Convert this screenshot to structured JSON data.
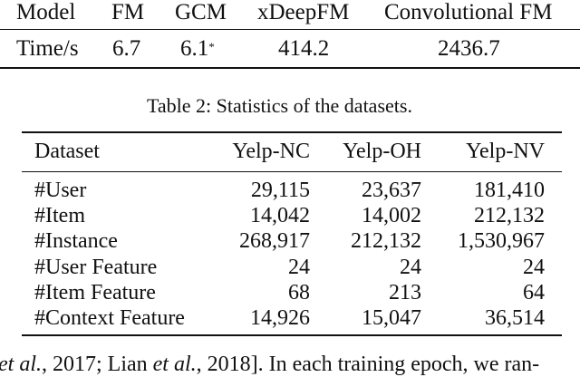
{
  "table1": {
    "headers": [
      "Model",
      "FM",
      "GCM",
      "xDeepFM",
      "Convolutional FM"
    ],
    "row_label": "Time/s",
    "values": [
      "6.7",
      "6.1",
      "414.2",
      "2436.7"
    ],
    "gcm_mark": "*"
  },
  "table2": {
    "caption": "Table 2: Statistics of the datasets.",
    "headers": [
      "Dataset",
      "Yelp-NC",
      "Yelp-OH",
      "Yelp-NV"
    ],
    "rows": [
      [
        "#User",
        "29,115",
        "23,637",
        "181,410"
      ],
      [
        "#Item",
        "14,042",
        "14,002",
        "212,132"
      ],
      [
        "#Instance",
        "268,917",
        "212,132",
        "1,530,967"
      ],
      [
        "#User Feature",
        "24",
        "24",
        "24"
      ],
      [
        "#Item Feature",
        "68",
        "213",
        "64"
      ],
      [
        "#Context Feature",
        "14,926",
        "15,047",
        "36,514"
      ]
    ]
  },
  "body_text": {
    "a": "et al.",
    "b": ", 2017; Lian ",
    "c": "et al.",
    "d": ", 2018]. In each training epoch, we ran-"
  }
}
